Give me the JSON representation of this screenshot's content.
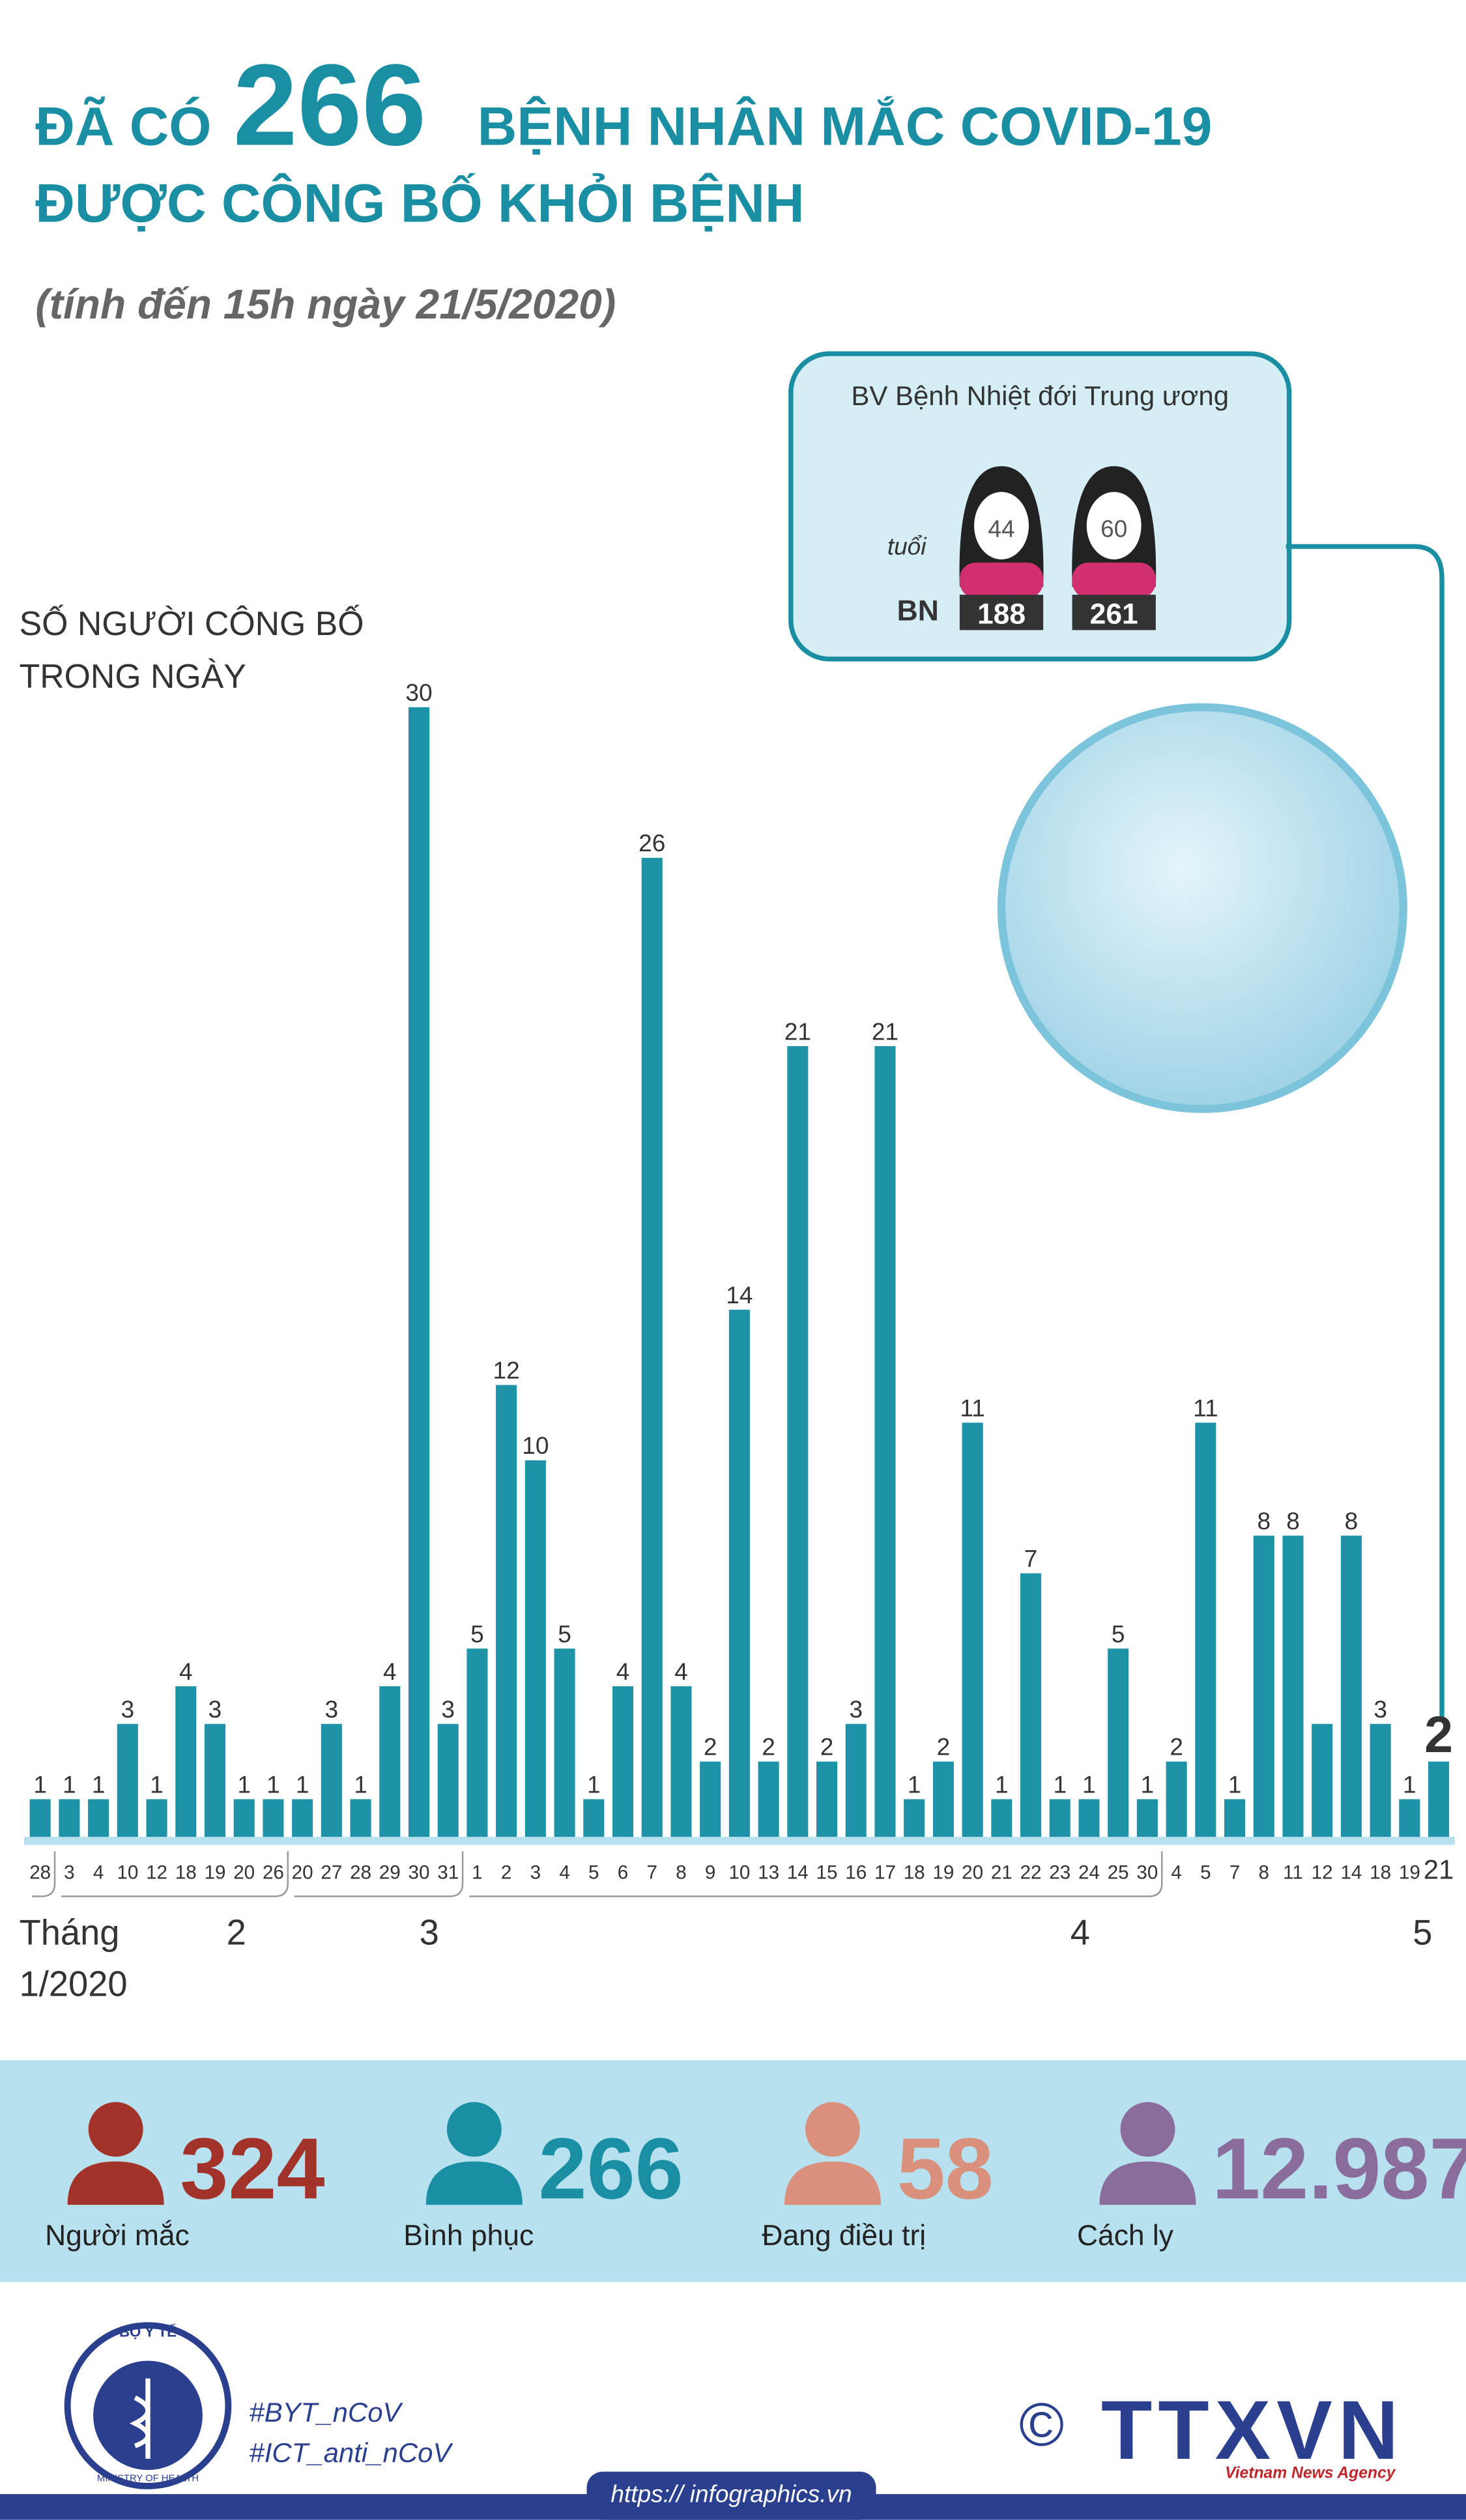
{
  "header": {
    "prefix": "ĐÃ CÓ",
    "number": "266",
    "rest": "BỆNH NHÂN MẮC COVID-19",
    "line2": "ĐƯỢC CÔNG BỐ KHỎI BỆNH",
    "subtitle": "(tính đến 15h ngày 21/5/2020)"
  },
  "chart_data": {
    "type": "bar",
    "y_label": [
      "SỐ NGƯỜI CÔNG BỐ",
      "TRONG NGÀY"
    ],
    "color": "#1e93a8",
    "ylim": [
      0,
      30
    ],
    "categories": [
      "28",
      "3",
      "4",
      "10",
      "12",
      "18",
      "19",
      "20",
      "26",
      "20",
      "27",
      "28",
      "29",
      "30",
      "31",
      "1",
      "2",
      "3",
      "4",
      "5",
      "6",
      "7",
      "8",
      "9",
      "10",
      "13",
      "14",
      "15",
      "16",
      "17",
      "18",
      "19",
      "20",
      "21",
      "22",
      "23",
      "24",
      "25",
      "30",
      "4",
      "5",
      "7",
      "8",
      "11",
      "12",
      "14",
      "18",
      "19",
      "21"
    ],
    "values": [
      1,
      1,
      1,
      3,
      1,
      4,
      3,
      1,
      1,
      1,
      3,
      1,
      4,
      30,
      3,
      5,
      12,
      10,
      5,
      1,
      4,
      26,
      4,
      2,
      14,
      2,
      21,
      2,
      3,
      21,
      1,
      2,
      11,
      1,
      7,
      1,
      1,
      5,
      1,
      2,
      11,
      1,
      8,
      8,
      3,
      8,
      3,
      1,
      2
    ],
    "value_labels": [
      "1",
      "1",
      "1",
      "3",
      "1",
      "4",
      "3",
      "1",
      "1",
      "1",
      "3",
      "1",
      "4",
      "30",
      "3",
      "5",
      "12",
      "10",
      "5",
      "1",
      "4",
      "26",
      "4",
      "2",
      "14",
      "2",
      "21",
      "2",
      "3",
      "21",
      "1",
      "2",
      "11",
      "1",
      "7",
      "1",
      "1",
      "5",
      "1",
      "2",
      "11",
      "1",
      "8",
      "8",
      null,
      "8",
      "3",
      "1",
      "2"
    ],
    "months": [
      "Tháng 1/2020",
      "2",
      "3",
      "4",
      "5"
    ]
  },
  "callout": {
    "title": "BV Bệnh Nhiệt đới Trung ương",
    "age_label": "tuổi",
    "id_label": "BN",
    "patients": [
      {
        "age": "44",
        "id": "188"
      },
      {
        "age": "60",
        "id": "261"
      }
    ]
  },
  "stats": [
    {
      "value": 324,
      "label": "Người mắc",
      "color": "#a3332a"
    },
    {
      "value": 266,
      "label": "Bình phục",
      "color": "#1a8fa3"
    },
    {
      "value": 58,
      "label": "Đang điều trị",
      "color": "#d9907c"
    },
    {
      "value": 12987,
      "value_label": "12.987",
      "label": "Cách ly",
      "color": "#8a6d9b"
    }
  ],
  "footer": {
    "logo_text": "BỘ Y TẾ",
    "logo_sub": "MINISTRY OF HEALTH",
    "tags": [
      "#BYT_nCoV",
      "#ICT_anti_nCoV"
    ],
    "copyright": "©",
    "agency": "TTXVN",
    "agency_sub": "Vietnam News Agency",
    "url": "https:// infographics.vn"
  }
}
